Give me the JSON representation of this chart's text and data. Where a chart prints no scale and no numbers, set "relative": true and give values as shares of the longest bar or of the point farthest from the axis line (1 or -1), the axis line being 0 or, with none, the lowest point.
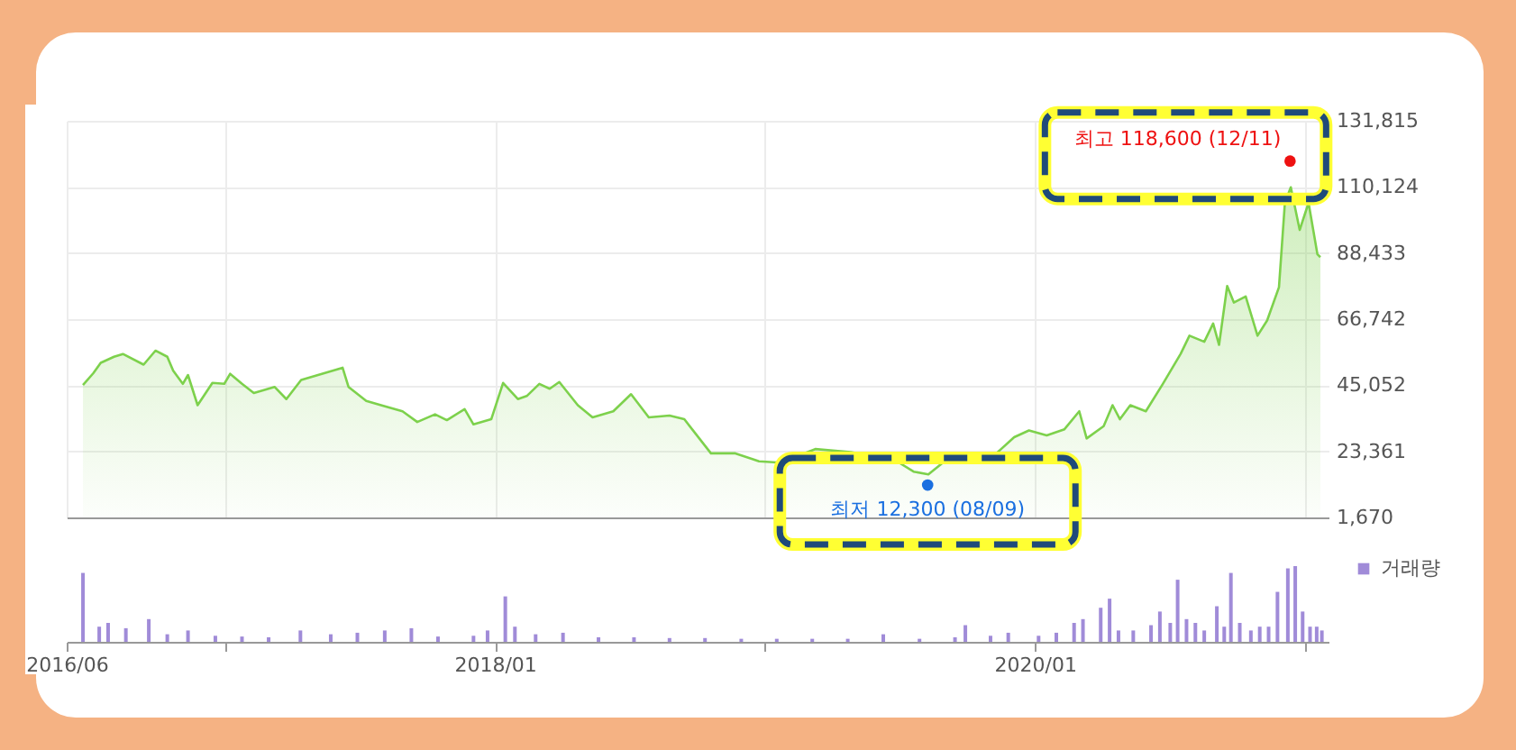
{
  "chart_data": [
    {
      "type": "area",
      "xlim": [
        "2016-06-01",
        "2021-02-01"
      ],
      "xticks": [
        {
          "value": "2016-06-01",
          "label": null
        },
        {
          "value": "2017-01-01",
          "label": null
        },
        {
          "value": "2018-01-01",
          "label": null
        },
        {
          "value": "2019-01-01",
          "label": null
        },
        {
          "value": "2020-01-01",
          "label": null
        },
        {
          "value": "2021-01-01",
          "label": null
        }
      ],
      "ylim": [
        1670,
        131815
      ],
      "yticks": [
        {
          "value": 1670,
          "label": "1,670"
        },
        {
          "value": 23361,
          "label": "23,361"
        },
        {
          "value": 45052,
          "label": "45,052"
        },
        {
          "value": 66742,
          "label": "66,742"
        },
        {
          "value": 88433,
          "label": "88,433"
        },
        {
          "value": 110124,
          "label": "110,124"
        },
        {
          "value": 131815,
          "label": "131,815"
        }
      ],
      "grid": true,
      "tick_labels": "y",
      "x": [
        "2016-06-23",
        "2016-07-07",
        "2016-07-17",
        "2016-08-04",
        "2016-08-16",
        "2016-09-13",
        "2016-09-29",
        "2016-10-15",
        "2016-10-23",
        "2016-11-05",
        "2016-11-12",
        "2016-11-25",
        "2016-12-15",
        "2016-12-31",
        "2017-01-08",
        "2017-01-24",
        "2017-02-09",
        "2017-03-09",
        "2017-03-25",
        "2017-04-14",
        "2017-06-09",
        "2017-06-17",
        "2017-07-11",
        "2017-07-31",
        "2017-08-29",
        "2017-09-18",
        "2017-10-12",
        "2017-10-28",
        "2017-11-21",
        "2017-12-03",
        "2017-12-27",
        "2018-01-12",
        "2018-02-01",
        "2018-02-13",
        "2018-03-02",
        "2018-03-16",
        "2018-03-29",
        "2018-04-23",
        "2018-05-13",
        "2018-06-10",
        "2018-07-04",
        "2018-07-28",
        "2018-08-25",
        "2018-09-14",
        "2018-10-20",
        "2018-11-22",
        "2018-12-24",
        "2019-01-17",
        "2019-02-02",
        "2019-03-10",
        "2019-04-27",
        "2019-06-27",
        "2019-07-21",
        "2019-08-10",
        "2019-08-30",
        "2019-11-10",
        "2019-12-04",
        "2019-12-24",
        "2020-01-17",
        "2020-02-10",
        "2020-03-01",
        "2020-03-11",
        "2020-04-03",
        "2020-04-15",
        "2020-04-25",
        "2020-05-09",
        "2020-05-30",
        "2020-06-22",
        "2020-07-16",
        "2020-07-28",
        "2020-08-17",
        "2020-08-29",
        "2020-09-06",
        "2020-09-17",
        "2020-09-26",
        "2020-10-12",
        "2020-10-28",
        "2020-11-10",
        "2020-11-26",
        "2020-12-04",
        "2020-12-12",
        "2020-12-24",
        "2021-01-05",
        "2021-01-17",
        "2021-01-21"
      ],
      "series": [
        {
          "type": "scatter",
          "colors": [
            "#ee1111",
            "#1a6fe0"
          ],
          "x": [
            "2020-12-11",
            "2019-08-09"
          ],
          "values": [
            118600,
            12300
          ]
        },
        {
          "color": "#7dd14c",
          "values": [
            45100,
            49000,
            52400,
            54400,
            55300,
            51800,
            56400,
            54400,
            49800,
            45500,
            48400,
            38500,
            45800,
            45500,
            48800,
            45500,
            42500,
            44500,
            40500,
            46800,
            50800,
            44500,
            39900,
            38500,
            36500,
            33000,
            35500,
            33600,
            37200,
            32200,
            33900,
            45800,
            40500,
            41500,
            45500,
            43900,
            46100,
            38500,
            34500,
            36500,
            42100,
            34500,
            35100,
            33900,
            22700,
            22700,
            20100,
            19700,
            20700,
            24100,
            23100,
            20300,
            16700,
            15800,
            19700,
            22700,
            28000,
            30200,
            28600,
            30600,
            36500,
            27600,
            31600,
            38500,
            33900,
            38500,
            36500,
            45500,
            55300,
            61300,
            59300,
            65300,
            58300,
            77600,
            72200,
            74200,
            61300,
            66300,
            77200,
            104900,
            110000,
            96000,
            104900,
            88000,
            87100
          ]
        }
      ],
      "annotations": [
        {
          "text": "최고 118,600 (12/11)",
          "x": "2020-12-11",
          "y": 118600
        },
        {
          "text": "최저 12,300 (08/09)",
          "x": "2019-08-09",
          "y": 12300
        }
      ]
    },
    {
      "type": "bar",
      "relative": true,
      "xlim": [
        "2016-06-01",
        "2021-02-01"
      ],
      "xticks": [
        {
          "value": "2016-06-01",
          "label": "2016/06"
        },
        {
          "value": "2017-01-01",
          "label": null
        },
        {
          "value": "2018-01-01",
          "label": "2018/01"
        },
        {
          "value": "2019-01-01",
          "label": null
        },
        {
          "value": "2020-01-01",
          "label": "2020/01"
        },
        {
          "value": "2021-01-01",
          "label": null
        }
      ],
      "tick_labels": "x",
      "legend": "top right",
      "x": [
        "2016-06-23",
        "2016-07-15",
        "2016-07-27",
        "2016-08-20",
        "2016-09-20",
        "2016-10-15",
        "2016-11-12",
        "2016-12-19",
        "2017-01-24",
        "2017-03-01",
        "2017-04-13",
        "2017-05-24",
        "2017-06-29",
        "2017-08-05",
        "2017-09-10",
        "2017-10-16",
        "2017-12-03",
        "2017-12-22",
        "2018-01-15",
        "2018-01-28",
        "2018-02-25",
        "2018-04-03",
        "2018-05-21",
        "2018-07-08",
        "2018-08-25",
        "2018-10-12",
        "2018-11-30",
        "2019-01-17",
        "2019-03-06",
        "2019-04-23",
        "2019-06-10",
        "2019-07-29",
        "2019-09-15",
        "2019-09-29",
        "2019-11-02",
        "2019-11-26",
        "2020-01-06",
        "2020-01-30",
        "2020-02-23",
        "2020-03-06",
        "2020-03-30",
        "2020-04-11",
        "2020-04-23",
        "2020-05-13",
        "2020-06-06",
        "2020-06-18",
        "2020-07-02",
        "2020-07-12",
        "2020-07-24",
        "2020-08-05",
        "2020-08-17",
        "2020-09-03",
        "2020-09-13",
        "2020-09-22",
        "2020-10-04",
        "2020-10-19",
        "2020-10-31",
        "2020-11-12",
        "2020-11-24",
        "2020-12-08",
        "2020-12-18",
        "2020-12-28",
        "2021-01-07",
        "2021-01-16",
        "2021-01-23"
      ],
      "series": [
        {
          "name": "거래량",
          "color": "#a08bd8",
          "values": [
            0.91,
            0.2,
            0.25,
            0.18,
            0.3,
            0.1,
            0.15,
            0.08,
            0.07,
            0.06,
            0.15,
            0.1,
            0.12,
            0.15,
            0.18,
            0.07,
            0.08,
            0.15,
            0.6,
            0.2,
            0.1,
            0.12,
            0.06,
            0.06,
            0.05,
            0.05,
            0.04,
            0.04,
            0.04,
            0.04,
            0.1,
            0.04,
            0.06,
            0.22,
            0.08,
            0.12,
            0.08,
            0.12,
            0.25,
            0.3,
            0.45,
            0.57,
            0.15,
            0.15,
            0.22,
            0.4,
            0.25,
            0.82,
            0.3,
            0.25,
            0.15,
            0.47,
            0.2,
            0.91,
            0.25,
            0.15,
            0.2,
            0.2,
            0.66,
            0.97,
            1,
            0.4,
            0.2,
            0.2,
            0.15
          ]
        }
      ]
    }
  ]
}
